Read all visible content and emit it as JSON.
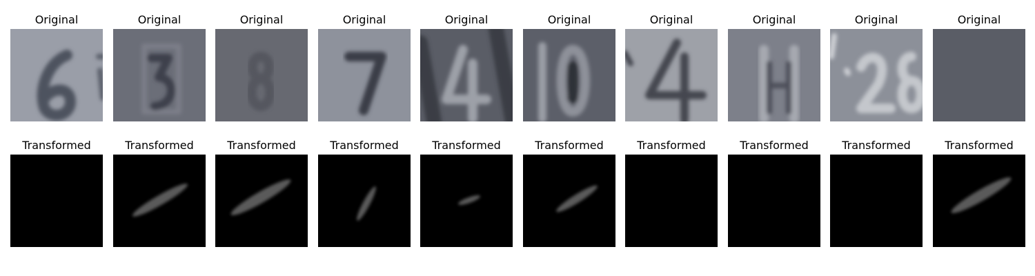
{
  "rows": [
    {
      "titles": [
        "Original",
        "Original",
        "Original",
        "Original",
        "Original",
        "Original",
        "Original",
        "Original",
        "Original",
        "Original"
      ]
    },
    {
      "titles": [
        "Transformed",
        "Transformed",
        "Transformed",
        "Transformed",
        "Transformed",
        "Transformed",
        "Transformed",
        "Transformed",
        "Transformed",
        "Transformed"
      ]
    }
  ]
}
